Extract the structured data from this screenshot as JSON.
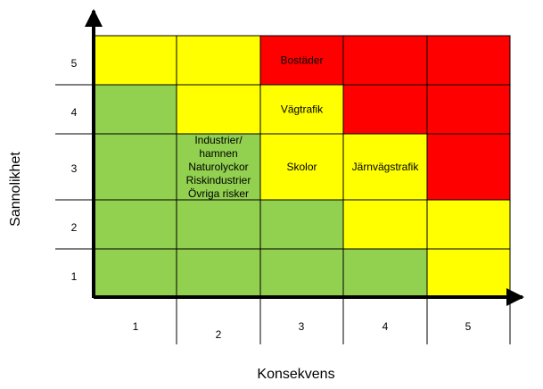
{
  "axes": {
    "x_label": "Konsekvens",
    "y_label": "Sannolikhet",
    "x_ticks": [
      "1",
      "2",
      "3",
      "4",
      "5"
    ],
    "y_ticks": [
      "5",
      "4",
      "3",
      "2",
      "1"
    ]
  },
  "colors": {
    "green": "#92d050",
    "yellow": "#ffff00",
    "red": "#ff0000"
  },
  "grid": [
    [
      "yellow",
      "yellow",
      "red",
      "red",
      "red"
    ],
    [
      "green",
      "yellow",
      "yellow",
      "red",
      "red"
    ],
    [
      "green",
      "green",
      "yellow",
      "yellow",
      "red"
    ],
    [
      "green",
      "green",
      "green",
      "yellow",
      "yellow"
    ],
    [
      "green",
      "green",
      "green",
      "green",
      "yellow"
    ]
  ],
  "risks": [
    {
      "name": "bostader",
      "probability": 5,
      "consequence": 3,
      "lines": [
        "Bostäder"
      ]
    },
    {
      "name": "vagtrafik",
      "probability": 4,
      "consequence": 3,
      "lines": [
        "Vägtrafik"
      ]
    },
    {
      "name": "skolor",
      "probability": 3,
      "consequence": 3,
      "lines": [
        "Skolor"
      ]
    },
    {
      "name": "jarnvagstrafik",
      "probability": 3,
      "consequence": 4,
      "lines": [
        "Järnvägstrafik"
      ]
    },
    {
      "name": "industrier-group",
      "probability": 3,
      "consequence": 2,
      "lines": [
        "Industrier/",
        "hamnen",
        "Naturolyckor",
        "Riskindustrier",
        "Övriga risker"
      ]
    }
  ]
}
